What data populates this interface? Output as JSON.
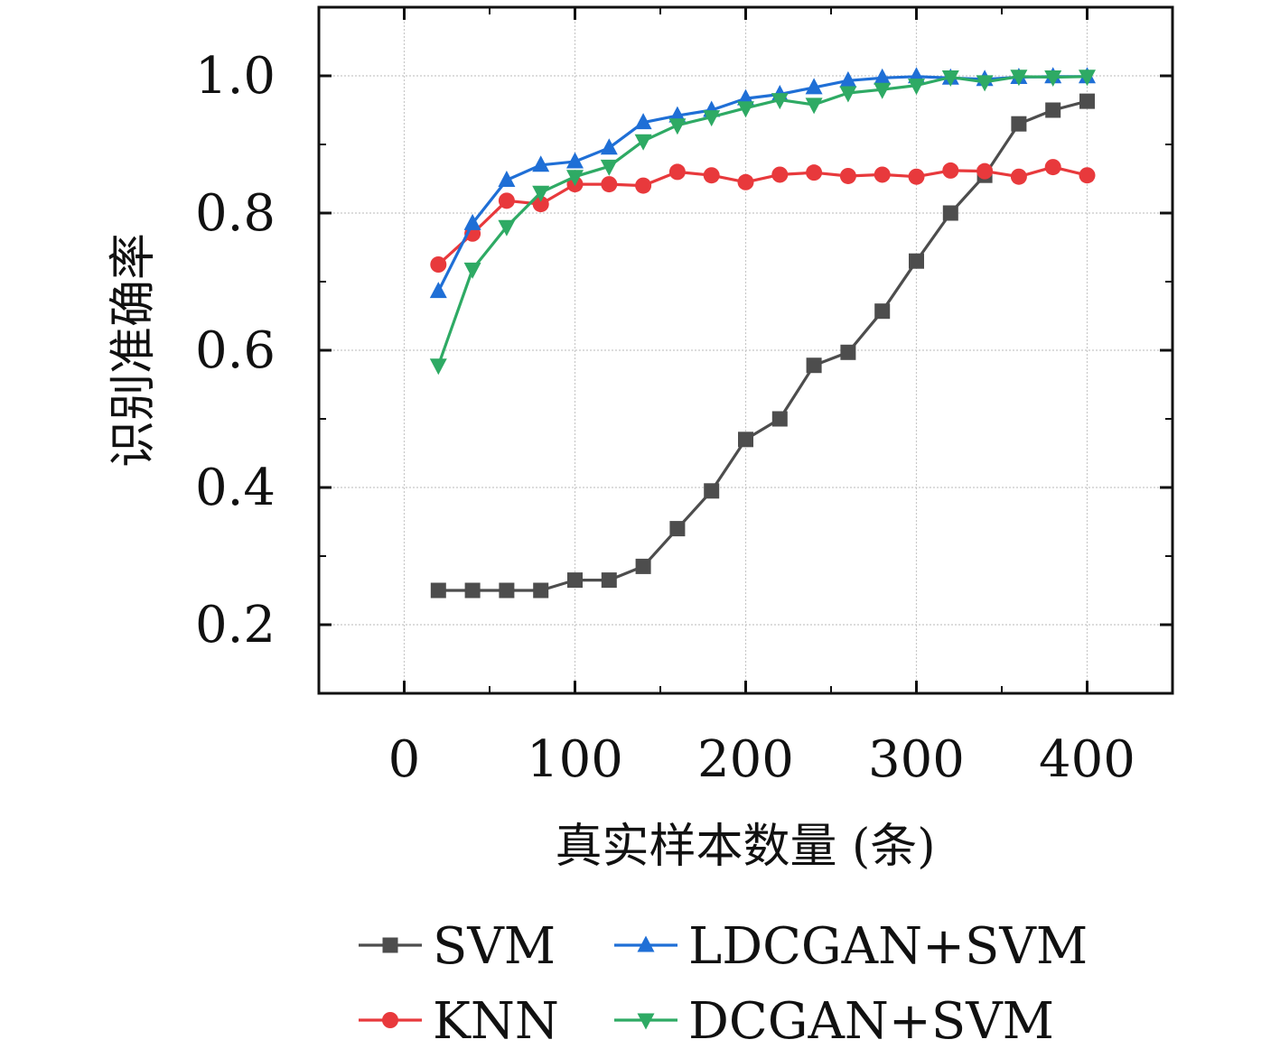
{
  "chart_data": {
    "type": "line",
    "title": "",
    "xlabel": "真实样本数量 (条)",
    "ylabel": "识别准确率",
    "xlim": [
      -50,
      450
    ],
    "ylim": [
      0.1,
      1.1
    ],
    "xticks": [
      0,
      100,
      200,
      300,
      400
    ],
    "xtick_labels": [
      "0",
      "100",
      "200",
      "300",
      "400"
    ],
    "yticks": [
      0.2,
      0.4,
      0.6,
      0.8,
      1.0
    ],
    "ytick_labels": [
      "0.2",
      "0.4",
      "0.6",
      "0.8",
      "1.0"
    ],
    "grid": true,
    "legend_position": "bottom",
    "x": [
      20,
      40,
      60,
      80,
      100,
      120,
      140,
      160,
      180,
      200,
      220,
      240,
      260,
      280,
      300,
      320,
      340,
      360,
      380,
      400
    ],
    "series": [
      {
        "name": "SVM",
        "color": "#4d4d4d",
        "marker": "square",
        "values": [
          0.25,
          0.25,
          0.25,
          0.25,
          0.265,
          0.265,
          0.285,
          0.34,
          0.395,
          0.47,
          0.5,
          0.578,
          0.597,
          0.657,
          0.73,
          0.8,
          0.855,
          0.93,
          0.95,
          0.963
        ]
      },
      {
        "name": "KNN",
        "color": "#e8393c",
        "marker": "circle",
        "values": [
          0.725,
          0.77,
          0.818,
          0.813,
          0.842,
          0.842,
          0.84,
          0.86,
          0.855,
          0.845,
          0.856,
          0.859,
          0.854,
          0.856,
          0.853,
          0.862,
          0.861,
          0.853,
          0.867,
          0.855
        ]
      },
      {
        "name": "LDCGAN+SVM",
        "color": "#1f6fd6",
        "marker": "triangle-up",
        "values": [
          0.686,
          0.785,
          0.848,
          0.87,
          0.875,
          0.895,
          0.932,
          0.942,
          0.95,
          0.967,
          0.973,
          0.983,
          0.993,
          0.997,
          0.999,
          0.997,
          0.995,
          0.998,
          0.999,
          0.999
        ]
      },
      {
        "name": "DCGAN+SVM",
        "color": "#2eaa64",
        "marker": "triangle-down",
        "values": [
          0.578,
          0.718,
          0.78,
          0.83,
          0.853,
          0.868,
          0.905,
          0.928,
          0.94,
          0.953,
          0.965,
          0.958,
          0.975,
          0.98,
          0.986,
          0.998,
          0.991,
          0.999,
          0.998,
          0.999
        ]
      }
    ]
  }
}
